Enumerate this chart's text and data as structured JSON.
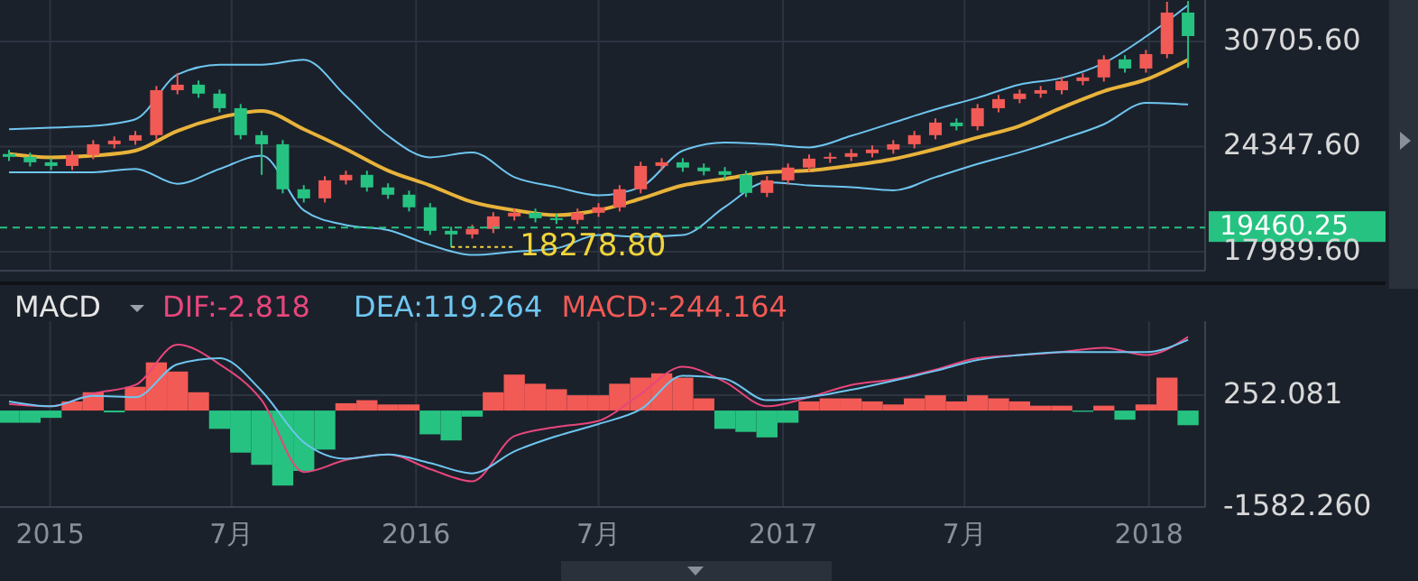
{
  "chart_data": [
    {
      "type": "candlestick",
      "x": [
        "2014-11-21",
        "2014-12-12",
        "2015-01-02",
        "2015-01-23",
        "2015-02-13",
        "2015-03-06",
        "2015-03-27",
        "2015-04-17",
        "2015-05-08",
        "2015-05-29",
        "2015-06-19",
        "2015-07-10",
        "2015-07-31",
        "2015-08-21",
        "2015-09-11",
        "2015-10-02",
        "2015-10-23",
        "2015-11-13",
        "2015-12-04",
        "2015-12-25",
        "2016-01-15",
        "2016-02-05",
        "2016-02-26",
        "2016-03-18",
        "2016-04-08",
        "2016-04-29",
        "2016-05-20",
        "2016-06-10",
        "2016-07-01",
        "2016-07-22",
        "2016-08-12",
        "2016-09-02",
        "2016-09-23",
        "2016-10-14",
        "2016-11-04",
        "2016-11-25",
        "2016-12-16",
        "2017-01-06",
        "2017-01-27",
        "2017-02-17",
        "2017-03-10",
        "2017-03-31",
        "2017-04-21",
        "2017-05-12",
        "2017-06-02",
        "2017-06-23",
        "2017-07-14",
        "2017-08-04",
        "2017-08-25",
        "2017-09-15",
        "2017-10-06",
        "2017-10-27",
        "2017-11-17",
        "2017-12-08",
        "2017-12-29",
        "2018-01-19",
        "2018-02-09"
      ],
      "ohlc": [
        [
          23900,
          24150,
          23480,
          23730
        ],
        [
          23730,
          23980,
          23150,
          23400
        ],
        [
          23400,
          23650,
          22930,
          23180
        ],
        [
          23180,
          24090,
          22930,
          23840
        ],
        [
          23840,
          24740,
          23590,
          24490
        ],
        [
          24490,
          24960,
          24240,
          24710
        ],
        [
          24710,
          25290,
          24460,
          25040
        ],
        [
          25040,
          28010,
          24790,
          27760
        ],
        [
          27760,
          28800,
          27510,
          28090
        ],
        [
          28090,
          28340,
          27300,
          27550
        ],
        [
          27550,
          27800,
          26420,
          26670
        ],
        [
          26670,
          26920,
          24790,
          25040
        ],
        [
          25040,
          25290,
          22640,
          24490
        ],
        [
          24490,
          24740,
          21520,
          21770
        ],
        [
          21770,
          22020,
          20970,
          21220
        ],
        [
          21220,
          22560,
          20970,
          22310
        ],
        [
          22310,
          22890,
          22060,
          22640
        ],
        [
          22640,
          22890,
          21630,
          21880
        ],
        [
          21880,
          22130,
          21190,
          21440
        ],
        [
          21440,
          21690,
          20430,
          20680
        ],
        [
          20680,
          20930,
          19010,
          19260
        ],
        [
          19260,
          19510,
          18278.8,
          19040
        ],
        [
          19040,
          19620,
          18790,
          19370
        ],
        [
          19370,
          20380,
          19120,
          20130
        ],
        [
          20130,
          20600,
          19880,
          20350
        ],
        [
          20350,
          20600,
          19770,
          20020
        ],
        [
          20020,
          20270,
          19670,
          19920
        ],
        [
          19920,
          20600,
          19670,
          20350
        ],
        [
          20350,
          20930,
          20100,
          20680
        ],
        [
          20680,
          22020,
          20430,
          21770
        ],
        [
          21770,
          23430,
          21520,
          23180
        ],
        [
          23180,
          23650,
          22930,
          23400
        ],
        [
          23400,
          23650,
          22830,
          23080
        ],
        [
          23080,
          23330,
          22610,
          22860
        ],
        [
          22860,
          23110,
          22390,
          22640
        ],
        [
          22640,
          22890,
          21300,
          21550
        ],
        [
          21550,
          22560,
          21300,
          22310
        ],
        [
          22310,
          23330,
          22060,
          23080
        ],
        [
          23080,
          23870,
          22830,
          23620
        ],
        [
          23620,
          23980,
          23370,
          23730
        ],
        [
          23730,
          24200,
          23480,
          23950
        ],
        [
          23950,
          24420,
          23700,
          24170
        ],
        [
          24170,
          24740,
          23920,
          24490
        ],
        [
          24490,
          25290,
          24240,
          25040
        ],
        [
          25040,
          26050,
          24790,
          25800
        ],
        [
          25800,
          26050,
          25330,
          25580
        ],
        [
          25580,
          26920,
          25330,
          26670
        ],
        [
          26670,
          27470,
          26420,
          27220
        ],
        [
          27220,
          27800,
          26970,
          27550
        ],
        [
          27550,
          28010,
          27300,
          27760
        ],
        [
          27760,
          28560,
          27510,
          28310
        ],
        [
          28310,
          28780,
          28060,
          28530
        ],
        [
          28530,
          29870,
          28280,
          29620
        ],
        [
          29620,
          29870,
          28820,
          29070
        ],
        [
          29070,
          30190,
          28820,
          29940
        ],
        [
          29940,
          33100,
          29690,
          32450
        ],
        [
          32450,
          33150,
          29100,
          31030
        ]
      ],
      "colors": [
        "#26c281",
        "#26c281",
        "#26c281",
        "#f25a55",
        "#f25a55",
        "#f25a55",
        "#f25a55",
        "#f25a55",
        "#f25a55",
        "#26c281",
        "#26c281",
        "#26c281",
        "#26c281",
        "#26c281",
        "#26c281",
        "#f25a55",
        "#f25a55",
        "#26c281",
        "#26c281",
        "#26c281",
        "#26c281",
        "#26c281",
        "#f25a55",
        "#f25a55",
        "#f25a55",
        "#26c281",
        "#26c281",
        "#f25a55",
        "#f25a55",
        "#f25a55",
        "#f25a55",
        "#f25a55",
        "#26c281",
        "#26c281",
        "#26c281",
        "#26c281",
        "#f25a55",
        "#f25a55",
        "#f25a55",
        "#f25a55",
        "#f25a55",
        "#f25a55",
        "#f25a55",
        "#f25a55",
        "#f25a55",
        "#26c281",
        "#f25a55",
        "#f25a55",
        "#f25a55",
        "#f25a55",
        "#f25a55",
        "#f25a55",
        "#f25a55",
        "#26c281",
        "#f25a55",
        "#f25a55",
        "#26c281"
      ],
      "series": [
        {
          "type": "line",
          "color": "#6ec6f0",
          "x": [
            "2014-11-21",
            "2015-01-02",
            "2015-02-13",
            "2015-03-27",
            "2015-05-08",
            "2015-06-19",
            "2015-07-31",
            "2015-09-11",
            "2015-10-23",
            "2015-12-04",
            "2016-01-15",
            "2016-02-26",
            "2016-04-08",
            "2016-05-20",
            "2016-07-01",
            "2016-08-12",
            "2016-09-23",
            "2016-11-04",
            "2016-12-16",
            "2017-01-27",
            "2017-03-10",
            "2017-04-21",
            "2017-06-02",
            "2017-07-14",
            "2017-08-25",
            "2017-10-06",
            "2017-11-17",
            "2017-12-29",
            "2018-02-09"
          ],
          "values": [
            25400,
            25500,
            25600,
            26000,
            28700,
            29300,
            29300,
            29600,
            27400,
            25000,
            23700,
            24000,
            22500,
            21900,
            21400,
            21900,
            24100,
            24600,
            24500,
            24300,
            25000,
            25800,
            26600,
            27300,
            28100,
            28500,
            29400,
            31000,
            32900
          ]
        },
        {
          "type": "line",
          "color": "#e8b33a",
          "x": [
            "2014-11-21",
            "2015-01-02",
            "2015-02-13",
            "2015-03-27",
            "2015-05-08",
            "2015-06-19",
            "2015-07-31",
            "2015-09-11",
            "2015-10-23",
            "2015-12-04",
            "2016-01-15",
            "2016-02-26",
            "2016-04-08",
            "2016-05-20",
            "2016-07-01",
            "2016-08-12",
            "2016-09-23",
            "2016-11-04",
            "2016-12-16",
            "2017-01-27",
            "2017-03-10",
            "2017-04-21",
            "2017-06-02",
            "2017-07-14",
            "2017-08-25",
            "2017-10-06",
            "2017-11-17",
            "2017-12-29",
            "2018-02-09"
          ],
          "values": [
            23900,
            23700,
            23800,
            24100,
            25300,
            26100,
            26500,
            25400,
            24200,
            22900,
            22000,
            21000,
            20500,
            20200,
            20500,
            21200,
            22000,
            22400,
            22800,
            22900,
            23200,
            23600,
            24200,
            24900,
            25600,
            26700,
            27700,
            28400,
            29600
          ]
        },
        {
          "type": "line",
          "color": "#6ec6f0",
          "x": [
            "2014-11-21",
            "2015-01-02",
            "2015-02-13",
            "2015-03-27",
            "2015-05-08",
            "2015-06-19",
            "2015-07-31",
            "2015-09-11",
            "2015-10-23",
            "2015-12-04",
            "2016-01-15",
            "2016-02-26",
            "2016-04-08",
            "2016-05-20",
            "2016-07-01",
            "2016-08-12",
            "2016-09-23",
            "2016-11-04",
            "2016-12-16",
            "2017-01-27",
            "2017-03-10",
            "2017-04-21",
            "2017-06-02",
            "2017-07-14",
            "2017-08-25",
            "2017-10-06",
            "2017-11-17",
            "2017-12-29",
            "2018-02-09"
          ],
          "values": [
            22800,
            22800,
            22800,
            23000,
            22100,
            23000,
            23800,
            20500,
            19600,
            19300,
            18400,
            17800,
            18000,
            18200,
            19000,
            18900,
            19000,
            20700,
            22200,
            22000,
            21900,
            21700,
            22500,
            23300,
            24000,
            24800,
            25700,
            27000,
            26900
          ]
        }
      ],
      "xlim": [
        "2014-11-12",
        "2018-02-26"
      ],
      "xticks": [
        {
          "value": "2015-01-01",
          "label": null
        },
        {
          "value": "2015-07-01",
          "label": null
        },
        {
          "value": "2016-01-01",
          "label": null
        },
        {
          "value": "2016-07-01",
          "label": null
        },
        {
          "value": "2017-01-01",
          "label": null
        },
        {
          "value": "2017-07-01",
          "label": null
        },
        {
          "value": "2018-01-01",
          "label": null
        }
      ],
      "ylim": [
        16850,
        33210
      ],
      "yticks": [
        {
          "value": 17989.6,
          "label": "17989.60"
        },
        {
          "value": 24347.6,
          "label": "24347.60"
        },
        {
          "value": 30705.6,
          "label": "30705.60"
        }
      ],
      "grid": true,
      "tick_labels": "y",
      "ref_lines": [
        {
          "axis": "y",
          "value": 19460.25,
          "label": "19460.25",
          "color": "#26c281",
          "line_style": "dashed"
        }
      ],
      "annotations": [
        {
          "text": "18278.80",
          "x": "2016-02-05",
          "y": 18278.8
        }
      ]
    },
    {
      "type": "bar",
      "title": "MACD",
      "x": [
        "2014-11-21",
        "2014-12-12",
        "2015-01-02",
        "2015-01-23",
        "2015-02-13",
        "2015-03-06",
        "2015-03-27",
        "2015-04-17",
        "2015-05-08",
        "2015-05-29",
        "2015-06-19",
        "2015-07-10",
        "2015-07-31",
        "2015-08-21",
        "2015-09-11",
        "2015-10-02",
        "2015-10-23",
        "2015-11-13",
        "2015-12-04",
        "2015-12-25",
        "2016-01-15",
        "2016-02-05",
        "2016-02-26",
        "2016-03-18",
        "2016-04-08",
        "2016-04-29",
        "2016-05-20",
        "2016-06-10",
        "2016-07-01",
        "2016-07-22",
        "2016-08-12",
        "2016-09-02",
        "2016-09-23",
        "2016-10-14",
        "2016-11-04",
        "2016-11-25",
        "2016-12-16",
        "2017-01-06",
        "2017-01-27",
        "2017-02-17",
        "2017-03-10",
        "2017-03-31",
        "2017-04-21",
        "2017-05-12",
        "2017-06-02",
        "2017-06-23",
        "2017-07-14",
        "2017-08-04",
        "2017-08-25",
        "2017-09-15",
        "2017-10-06",
        "2017-10-27",
        "2017-11-17",
        "2017-12-08",
        "2017-12-29",
        "2018-01-19",
        "2018-02-09"
      ],
      "series": [
        {
          "name": "DIF:-2.818",
          "type": "line",
          "color": "#e8467c",
          "x": [
            "2014-11-21",
            "2015-01-02",
            "2015-02-13",
            "2015-03-27",
            "2015-05-08",
            "2015-06-19",
            "2015-07-31",
            "2015-09-11",
            "2015-10-23",
            "2015-12-04",
            "2016-01-15",
            "2016-02-26",
            "2016-04-08",
            "2016-05-20",
            "2016-07-01",
            "2016-08-12",
            "2016-09-23",
            "2016-11-04",
            "2016-12-16",
            "2017-01-27",
            "2017-03-10",
            "2017-04-21",
            "2017-06-02",
            "2017-07-14",
            "2017-08-25",
            "2017-10-06",
            "2017-11-17",
            "2017-12-29",
            "2018-02-09"
          ],
          "values": [
            110,
            70,
            280,
            420,
            1080,
            760,
            170,
            -1010,
            -810,
            -720,
            -960,
            -1160,
            -420,
            -270,
            -170,
            270,
            720,
            470,
            70,
            220,
            420,
            510,
            670,
            860,
            910,
            960,
            1030,
            910,
            1210
          ]
        },
        {
          "name": "DEA:119.264",
          "type": "line",
          "color": "#6ec6f0",
          "x": [
            "2014-11-21",
            "2015-01-02",
            "2015-02-13",
            "2015-03-27",
            "2015-05-08",
            "2015-06-19",
            "2015-07-31",
            "2015-09-11",
            "2015-10-23",
            "2015-12-04",
            "2016-01-15",
            "2016-02-26",
            "2016-04-08",
            "2016-05-20",
            "2016-07-01",
            "2016-08-12",
            "2016-09-23",
            "2016-11-04",
            "2016-12-16",
            "2017-01-27",
            "2017-03-10",
            "2017-04-21",
            "2017-06-02",
            "2017-07-14",
            "2017-08-25",
            "2017-10-06",
            "2017-11-17",
            "2017-12-29",
            "2018-02-09"
          ],
          "values": [
            150,
            70,
            240,
            220,
            760,
            860,
            320,
            -520,
            -790,
            -720,
            -860,
            -1030,
            -670,
            -420,
            -220,
            20,
            570,
            520,
            170,
            220,
            340,
            490,
            650,
            830,
            910,
            960,
            960,
            960,
            1160
          ]
        },
        {
          "name": "MACD:-244.164",
          "type": "bar",
          "color": "#f25a55",
          "values": [
            -200,
            -200,
            -120,
            150,
            300,
            -30,
            390,
            790,
            640,
            300,
            -300,
            -690,
            -890,
            -1230,
            -990,
            -640,
            120,
            170,
            100,
            100,
            -390,
            -490,
            -100,
            300,
            590,
            440,
            350,
            250,
            250,
            440,
            540,
            610,
            540,
            200,
            -300,
            -350,
            -440,
            -200,
            150,
            200,
            200,
            150,
            100,
            200,
            250,
            150,
            250,
            200,
            150,
            80,
            80,
            -20,
            80,
            -150,
            100,
            540,
            -240
          ],
          "colors": [
            "#26c281",
            "#26c281",
            "#26c281",
            "#f25a55",
            "#f25a55",
            "#26c281",
            "#f25a55",
            "#f25a55",
            "#f25a55",
            "#f25a55",
            "#26c281",
            "#26c281",
            "#26c281",
            "#26c281",
            "#26c281",
            "#26c281",
            "#f25a55",
            "#f25a55",
            "#f25a55",
            "#f25a55",
            "#26c281",
            "#26c281",
            "#26c281",
            "#f25a55",
            "#f25a55",
            "#f25a55",
            "#f25a55",
            "#f25a55",
            "#f25a55",
            "#f25a55",
            "#f25a55",
            "#f25a55",
            "#f25a55",
            "#f25a55",
            "#26c281",
            "#26c281",
            "#26c281",
            "#26c281",
            "#f25a55",
            "#f25a55",
            "#f25a55",
            "#f25a55",
            "#f25a55",
            "#f25a55",
            "#f25a55",
            "#f25a55",
            "#f25a55",
            "#f25a55",
            "#f25a55",
            "#f25a55",
            "#f25a55",
            "#26c281",
            "#f25a55",
            "#26c281",
            "#f25a55",
            "#f25a55",
            "#26c281"
          ]
        }
      ],
      "xlim": [
        "2014-11-12",
        "2018-02-26"
      ],
      "xticks": [
        {
          "value": "2015-01-01",
          "label": "2015"
        },
        {
          "value": "2015-07-01",
          "label": "7月"
        },
        {
          "value": "2016-01-01",
          "label": "2016"
        },
        {
          "value": "2016-07-01",
          "label": "7月"
        },
        {
          "value": "2017-01-01",
          "label": "2017"
        },
        {
          "value": "2017-07-01",
          "label": "7月"
        },
        {
          "value": "2018-01-01",
          "label": "2018"
        }
      ],
      "ylim": [
        -1582.26,
        1466
      ],
      "yticks": [
        {
          "value": -1582.26,
          "label": "-1582.260"
        },
        {
          "value": 252.081,
          "label": "252.081"
        }
      ],
      "grid": true,
      "legend": "top left"
    }
  ]
}
